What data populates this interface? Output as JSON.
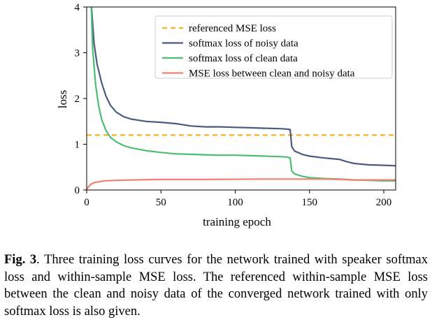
{
  "chart_data": {
    "type": "line",
    "xlabel": "training epoch",
    "ylabel": "loss",
    "xlim": [
      0,
      208
    ],
    "ylim": [
      0,
      4
    ],
    "xticks": [
      "0",
      "50",
      "100",
      "150",
      "200"
    ],
    "yticks": [
      "0",
      "1",
      "2",
      "3",
      "4"
    ],
    "grid": false,
    "legend_position": "top-right",
    "series": [
      {
        "name": "referenced MSE loss",
        "color": "#f0b428",
        "style": "dashed",
        "x": [
          0,
          208
        ],
        "y": [
          1.2,
          1.2
        ]
      },
      {
        "name": "softmax loss of noisy data",
        "color": "#4c5a82",
        "style": "solid",
        "x": [
          3,
          5,
          7,
          10,
          13,
          16,
          20,
          25,
          30,
          40,
          50,
          60,
          70,
          80,
          90,
          100,
          110,
          120,
          130,
          135,
          137,
          138,
          140,
          145,
          150,
          160,
          170,
          175,
          180,
          190,
          200,
          208
        ],
        "y": [
          4.1,
          3.2,
          2.75,
          2.35,
          2.05,
          1.85,
          1.7,
          1.6,
          1.55,
          1.5,
          1.48,
          1.45,
          1.4,
          1.38,
          1.38,
          1.37,
          1.36,
          1.35,
          1.34,
          1.33,
          1.32,
          0.95,
          0.85,
          0.78,
          0.74,
          0.7,
          0.67,
          0.62,
          0.58,
          0.55,
          0.54,
          0.53
        ]
      },
      {
        "name": "softmax loss of clean data",
        "color": "#4cbd72",
        "style": "solid",
        "x": [
          3,
          4,
          6,
          8,
          10,
          13,
          16,
          20,
          25,
          30,
          40,
          50,
          60,
          70,
          80,
          90,
          100,
          110,
          120,
          130,
          135,
          137,
          138,
          140,
          145,
          150,
          160,
          170,
          180,
          190,
          200,
          208
        ],
        "y": [
          4.1,
          3.1,
          2.3,
          1.85,
          1.55,
          1.3,
          1.15,
          1.05,
          0.97,
          0.92,
          0.86,
          0.82,
          0.79,
          0.78,
          0.77,
          0.76,
          0.76,
          0.75,
          0.74,
          0.73,
          0.72,
          0.7,
          0.42,
          0.35,
          0.3,
          0.27,
          0.25,
          0.24,
          0.22,
          0.21,
          0.2,
          0.2
        ]
      },
      {
        "name": "MSE loss between clean and noisy data",
        "color": "#f08070",
        "style": "solid",
        "x": [
          0,
          1,
          2,
          3,
          5,
          8,
          12,
          20,
          30,
          50,
          80,
          120,
          160,
          170,
          180,
          208
        ],
        "y": [
          0.02,
          0.06,
          0.1,
          0.13,
          0.16,
          0.18,
          0.2,
          0.21,
          0.22,
          0.23,
          0.23,
          0.24,
          0.24,
          0.23,
          0.22,
          0.22
        ]
      }
    ]
  },
  "caption": {
    "label": "Fig. 3",
    "text": ".  Three training loss curves for the network trained with speaker softmax loss and within-sample MSE loss. The referenced within-sample MSE loss between the clean and noisy data of the converged network trained with only softmax loss is also given."
  }
}
